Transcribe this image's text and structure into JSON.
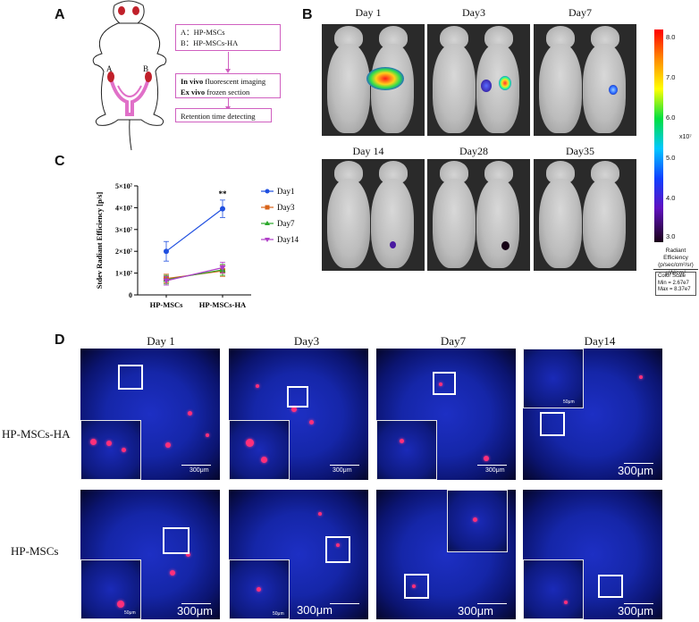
{
  "panels": {
    "A": "A",
    "B": "B",
    "C": "C",
    "D": "D"
  },
  "panel_a": {
    "groups_line1": "A：HP-MSCs",
    "groups_line2": "B：HP-MSCs-HA",
    "methods_line1_bold": "In vivo",
    "methods_line1_rest": " fluorescent imaging",
    "methods_line2_bold": "Ex  vivo",
    "methods_line2_rest": " frozen section",
    "final_step": "Retention time detecting",
    "site_a": "A",
    "site_b": "B"
  },
  "panel_b": {
    "timepoints": [
      "Day 1",
      "Day3",
      "Day7",
      "Day 14",
      "Day28",
      "Day35"
    ],
    "colorbar": {
      "ticks": [
        "8.0",
        "7.0",
        "6.0",
        "5.0",
        "4.0",
        "3.0"
      ],
      "multiplier": "x10⁷",
      "label_line1": "Radiant Efficiency",
      "label_line2": "(p/sec/cm²/sr)",
      "label_line3": "μW/cm²",
      "scale_title": "Color Scale",
      "scale_min": "Min = 2.67e7",
      "scale_max": "Max = 8.37e7"
    }
  },
  "chart_data": {
    "type": "line",
    "ylabel": "Stdev Radiant Efficiency [p/s]",
    "categories": [
      "HP-MSCs",
      "HP-MSCs-HA"
    ],
    "ylim": [
      0,
      50000000
    ],
    "yticks": [
      "0",
      "1×10⁷",
      "2×10⁷",
      "3×10⁷",
      "4×10⁷",
      "5×10⁷"
    ],
    "annotation": "**",
    "series": [
      {
        "name": "Day1",
        "values": [
          20000000,
          39500000
        ],
        "errors": [
          4500000,
          4000000
        ],
        "color": "#1f4fe0",
        "marker": "circle"
      },
      {
        "name": "Day3",
        "values": [
          7500000,
          11000000
        ],
        "errors": [
          2000000,
          2500000
        ],
        "color": "#d8641a",
        "marker": "square"
      },
      {
        "name": "Day7",
        "values": [
          7000000,
          11500000
        ],
        "errors": [
          2000000,
          2500000
        ],
        "color": "#2aa82a",
        "marker": "triangle"
      },
      {
        "name": "Day14",
        "values": [
          6500000,
          12500000
        ],
        "errors": [
          2000000,
          2500000
        ],
        "color": "#b040c8",
        "marker": "triangle-down"
      }
    ],
    "legend": "right"
  },
  "panel_d": {
    "columns": [
      "Day 1",
      "Day3",
      "Day7",
      "Day14"
    ],
    "rows": [
      "HP-MSCs-HA",
      "HP-MSCs"
    ],
    "scale_300": "300μm",
    "scale_50": "50μm"
  }
}
